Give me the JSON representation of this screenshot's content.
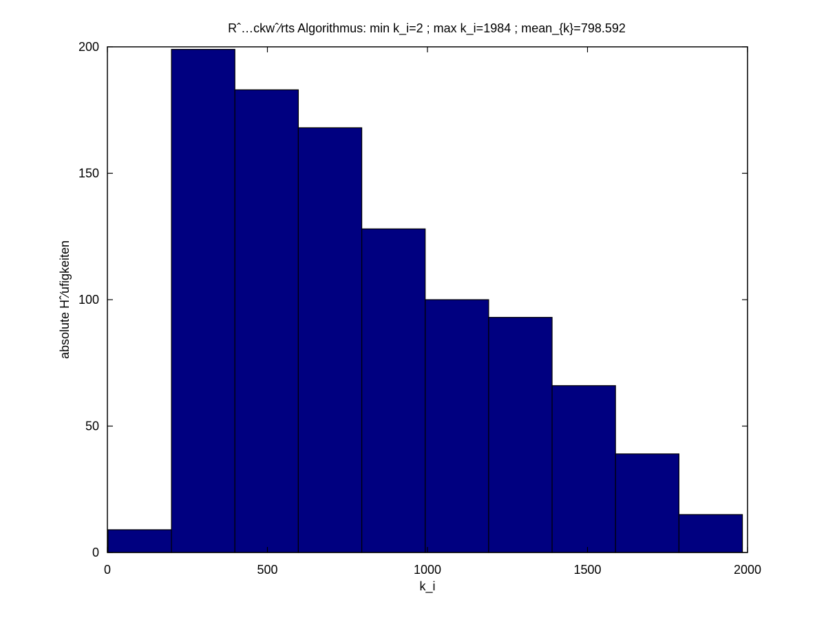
{
  "chart_data": {
    "type": "bar",
    "title": "Rˆ…ckwˆ⁄rts Algorithmus: min k_i=2 ; max k_i=1984 ; mean_{k}=798.592",
    "xlabel": "k_i",
    "ylabel": "absolute Hˆ⁄ufigkeiten",
    "xlim": [
      0,
      2000
    ],
    "ylim": [
      0,
      200
    ],
    "xticks": [
      0,
      500,
      1000,
      1500,
      2000
    ],
    "yticks": [
      0,
      50,
      100,
      150,
      200
    ],
    "bin_edges": [
      2,
      200.2,
      398.4,
      596.6,
      794.8,
      993,
      1191.2,
      1389.4,
      1587.6,
      1785.8,
      1984
    ],
    "values": [
      9,
      199,
      183,
      168,
      128,
      100,
      93,
      66,
      39,
      15
    ],
    "bar_color": "#000080",
    "grid": false,
    "legend": "none"
  }
}
